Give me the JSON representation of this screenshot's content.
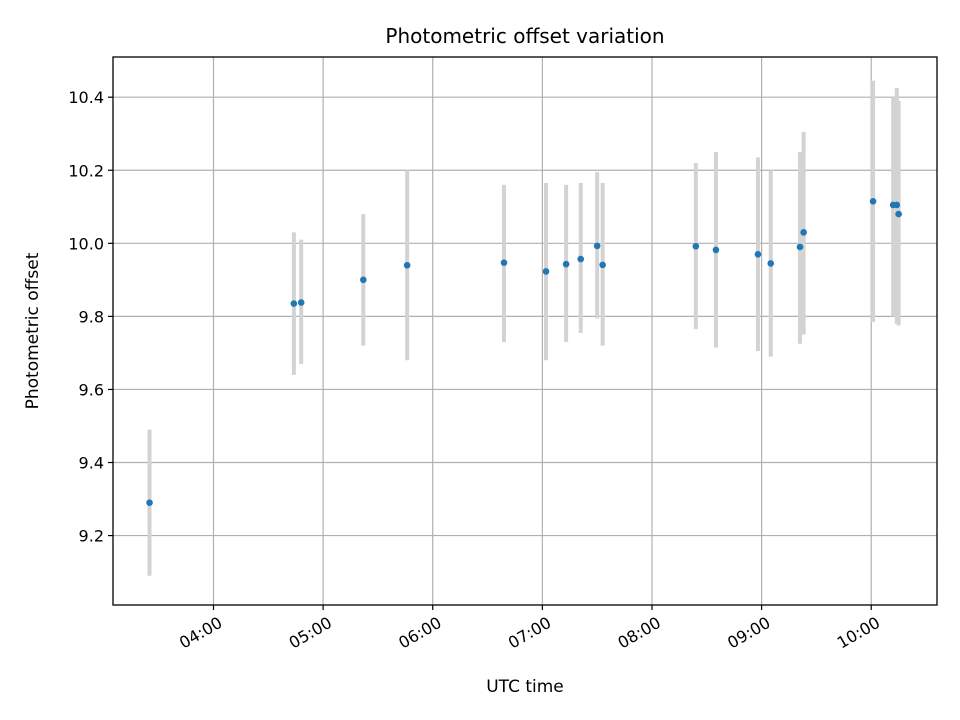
{
  "chart_data": {
    "type": "scatter",
    "title": "Photometric offset variation",
    "xlabel": "UTC time",
    "ylabel": "Photometric offset",
    "x_ticks": [
      "04:00",
      "05:00",
      "06:00",
      "07:00",
      "08:00",
      "09:00",
      "10:00"
    ],
    "y_ticks": [
      "9.2",
      "9.4",
      "9.6",
      "9.8",
      "10.0",
      "10.2",
      "10.4"
    ],
    "xlim": [
      "03:05",
      "10:36"
    ],
    "ylim": [
      9.01,
      10.51
    ],
    "grid": true,
    "colors": {
      "point": "#1f77b4",
      "error_bar": "#d3d3d3",
      "grid": "#b0b0b0"
    },
    "points": [
      {
        "x": "03:25",
        "y": 9.29,
        "y_low": 9.09,
        "y_high": 9.49
      },
      {
        "x": "04:44",
        "y": 9.835,
        "y_low": 9.64,
        "y_high": 10.03
      },
      {
        "x": "04:48",
        "y": 9.838,
        "y_low": 9.67,
        "y_high": 10.01
      },
      {
        "x": "05:22",
        "y": 9.9,
        "y_low": 9.72,
        "y_high": 10.08
      },
      {
        "x": "05:46",
        "y": 9.94,
        "y_low": 9.68,
        "y_high": 10.2
      },
      {
        "x": "06:39",
        "y": 9.947,
        "y_low": 9.73,
        "y_high": 10.16
      },
      {
        "x": "07:02",
        "y": 9.923,
        "y_low": 9.68,
        "y_high": 10.165
      },
      {
        "x": "07:13",
        "y": 9.943,
        "y_low": 9.73,
        "y_high": 10.16
      },
      {
        "x": "07:21",
        "y": 9.957,
        "y_low": 9.755,
        "y_high": 10.165
      },
      {
        "x": "07:30",
        "y": 9.993,
        "y_low": 9.795,
        "y_high": 10.195
      },
      {
        "x": "07:33",
        "y": 9.941,
        "y_low": 9.72,
        "y_high": 10.165
      },
      {
        "x": "08:24",
        "y": 9.992,
        "y_low": 9.765,
        "y_high": 10.22
      },
      {
        "x": "08:35",
        "y": 9.982,
        "y_low": 9.715,
        "y_high": 10.25
      },
      {
        "x": "08:58",
        "y": 9.97,
        "y_low": 9.705,
        "y_high": 10.235
      },
      {
        "x": "09:05",
        "y": 9.945,
        "y_low": 9.69,
        "y_high": 10.2
      },
      {
        "x": "09:21",
        "y": 9.99,
        "y_low": 9.725,
        "y_high": 10.25
      },
      {
        "x": "09:23",
        "y": 10.03,
        "y_low": 9.75,
        "y_high": 10.305
      },
      {
        "x": "10:01",
        "y": 10.115,
        "y_low": 9.785,
        "y_high": 10.445
      },
      {
        "x": "10:12",
        "y": 10.105,
        "y_low": 9.8,
        "y_high": 10.4
      },
      {
        "x": "10:14",
        "y": 10.105,
        "y_low": 9.78,
        "y_high": 10.425
      },
      {
        "x": "10:15",
        "y": 10.08,
        "y_low": 9.775,
        "y_high": 10.39
      }
    ]
  }
}
